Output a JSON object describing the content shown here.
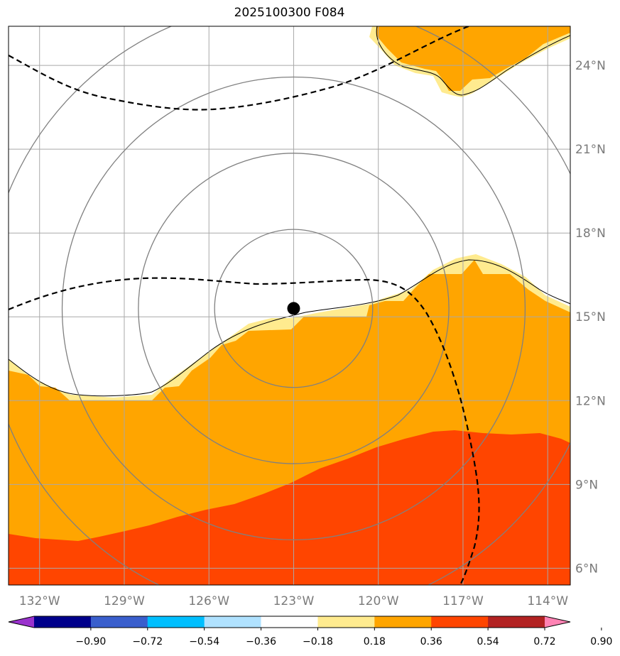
{
  "title": "2025100300 F084",
  "map": {
    "lon_range": [
      -133.1,
      -113.2
    ],
    "lat_range": [
      5.4,
      25.4
    ],
    "lon_ticks": [
      {
        "value": -132,
        "label": "132°W"
      },
      {
        "value": -129,
        "label": "129°W"
      },
      {
        "value": -126,
        "label": "126°W"
      },
      {
        "value": -123,
        "label": "123°W"
      },
      {
        "value": -120,
        "label": "120°W"
      },
      {
        "value": -117,
        "label": "117°W"
      },
      {
        "value": -114,
        "label": "114°W"
      }
    ],
    "lat_ticks": [
      {
        "value": 24,
        "label": "24°N"
      },
      {
        "value": 21,
        "label": "21°N"
      },
      {
        "value": 18,
        "label": "18°N"
      },
      {
        "value": 15,
        "label": "15°N"
      },
      {
        "value": 12,
        "label": "12°N"
      },
      {
        "value": 9,
        "label": "9°N"
      },
      {
        "value": 6,
        "label": "6°N"
      }
    ],
    "grid": true,
    "storm_center": {
      "lon": -123.0,
      "lat": 15.3
    },
    "range_rings_deg": [
      2.8,
      5.5,
      8.2,
      10.9
    ],
    "colors": {
      "band_018_036": "#ffeb8f",
      "band_036_054": "#ffa500",
      "band_054_072": "#ff4500",
      "grid": "#a9a9a9",
      "ring": "#808080",
      "contour": "#000000",
      "storm": "#000000"
    }
  },
  "colorbar": {
    "levels": [
      "−0.90",
      "−0.72",
      "−0.54",
      "−0.36",
      "−0.18",
      "0.18",
      "0.36",
      "0.54",
      "0.72",
      "0.90"
    ],
    "colors": [
      "#9a32cd",
      "#00008b",
      "#3a5fcd",
      "#00bfff",
      "#b0e2ff",
      "#ffffff",
      "#ffeb8f",
      "#ffa500",
      "#ff4500",
      "#b22222",
      "#ff83b4"
    ],
    "extend": "both"
  }
}
